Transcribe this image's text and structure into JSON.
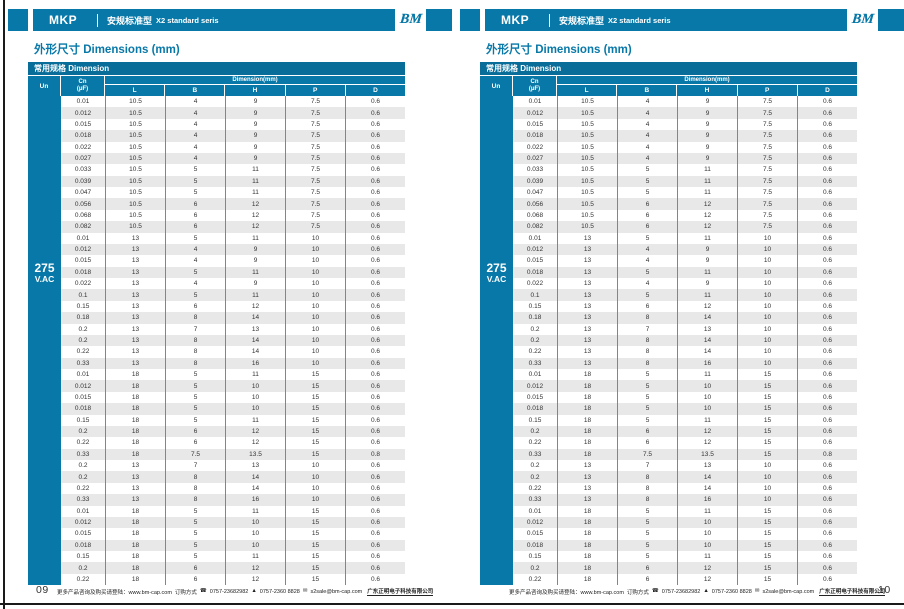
{
  "pages": [
    {
      "page_number": "09"
    },
    {
      "page_number": "10"
    }
  ],
  "header": {
    "series": "MKP",
    "subtitle_cn": "安规标准型",
    "subtitle_en": "X2 standard seris",
    "logo": "BM"
  },
  "section_title": "外形尺寸 Dimensions (mm)",
  "table": {
    "caption": "常用规格 Dimension",
    "col_un": "Un",
    "col_cn": "Cn",
    "col_cn_unit": "(μF)",
    "dim_group": "Dimension(mm)",
    "dim_cols": [
      "L",
      "B",
      "H",
      "P",
      "D"
    ],
    "un_value": "275",
    "un_unit": "V.AC",
    "rows": [
      [
        "0.01",
        "10.5",
        "4",
        "9",
        "7.5",
        "0.6"
      ],
      [
        "0.012",
        "10.5",
        "4",
        "9",
        "7.5",
        "0.6"
      ],
      [
        "0.015",
        "10.5",
        "4",
        "9",
        "7.5",
        "0.6"
      ],
      [
        "0.018",
        "10.5",
        "4",
        "9",
        "7.5",
        "0.6"
      ],
      [
        "0.022",
        "10.5",
        "4",
        "9",
        "7.5",
        "0.6"
      ],
      [
        "0.027",
        "10.5",
        "4",
        "9",
        "7.5",
        "0.6"
      ],
      [
        "0.033",
        "10.5",
        "5",
        "11",
        "7.5",
        "0.6"
      ],
      [
        "0.039",
        "10.5",
        "5",
        "11",
        "7.5",
        "0.6"
      ],
      [
        "0.047",
        "10.5",
        "5",
        "11",
        "7.5",
        "0.6"
      ],
      [
        "0.056",
        "10.5",
        "6",
        "12",
        "7.5",
        "0.6"
      ],
      [
        "0.068",
        "10.5",
        "6",
        "12",
        "7.5",
        "0.6"
      ],
      [
        "0.082",
        "10.5",
        "6",
        "12",
        "7.5",
        "0.6"
      ],
      [
        "0.01",
        "13",
        "5",
        "11",
        "10",
        "0.6"
      ],
      [
        "0.012",
        "13",
        "4",
        "9",
        "10",
        "0.6"
      ],
      [
        "0.015",
        "13",
        "4",
        "9",
        "10",
        "0.6"
      ],
      [
        "0.018",
        "13",
        "5",
        "11",
        "10",
        "0.6"
      ],
      [
        "0.022",
        "13",
        "4",
        "9",
        "10",
        "0.6"
      ],
      [
        "0.1",
        "13",
        "5",
        "11",
        "10",
        "0.6"
      ],
      [
        "0.15",
        "13",
        "6",
        "12",
        "10",
        "0.6"
      ],
      [
        "0.18",
        "13",
        "8",
        "14",
        "10",
        "0.6"
      ],
      [
        "0.2",
        "13",
        "7",
        "13",
        "10",
        "0.6"
      ],
      [
        "0.2",
        "13",
        "8",
        "14",
        "10",
        "0.6"
      ],
      [
        "0.22",
        "13",
        "8",
        "14",
        "10",
        "0.6"
      ],
      [
        "0.33",
        "13",
        "8",
        "16",
        "10",
        "0.6"
      ],
      [
        "0.01",
        "18",
        "5",
        "11",
        "15",
        "0.6"
      ],
      [
        "0.012",
        "18",
        "5",
        "10",
        "15",
        "0.6"
      ],
      [
        "0.015",
        "18",
        "5",
        "10",
        "15",
        "0.6"
      ],
      [
        "0.018",
        "18",
        "5",
        "10",
        "15",
        "0.6"
      ],
      [
        "0.15",
        "18",
        "5",
        "11",
        "15",
        "0.6"
      ],
      [
        "0.2",
        "18",
        "6",
        "12",
        "15",
        "0.6"
      ],
      [
        "0.22",
        "18",
        "6",
        "12",
        "15",
        "0.6"
      ],
      [
        "0.33",
        "18",
        "7.5",
        "13.5",
        "15",
        "0.8"
      ],
      [
        "0.2",
        "13",
        "7",
        "13",
        "10",
        "0.6"
      ],
      [
        "0.2",
        "13",
        "8",
        "14",
        "10",
        "0.6"
      ],
      [
        "0.22",
        "13",
        "8",
        "14",
        "10",
        "0.6"
      ],
      [
        "0.33",
        "13",
        "8",
        "16",
        "10",
        "0.6"
      ],
      [
        "0.01",
        "18",
        "5",
        "11",
        "15",
        "0.6"
      ],
      [
        "0.012",
        "18",
        "5",
        "10",
        "15",
        "0.6"
      ],
      [
        "0.015",
        "18",
        "5",
        "10",
        "15",
        "0.6"
      ],
      [
        "0.018",
        "18",
        "5",
        "10",
        "15",
        "0.6"
      ],
      [
        "0.15",
        "18",
        "5",
        "11",
        "15",
        "0.6"
      ],
      [
        "0.2",
        "18",
        "6",
        "12",
        "15",
        "0.6"
      ],
      [
        "0.22",
        "18",
        "6",
        "12",
        "15",
        "0.6"
      ]
    ]
  },
  "footer": {
    "info": "更多产品咨询及购买请登陆：www.bm-cap.com",
    "order_label": "订购方式",
    "icons": {
      "phone": "☎",
      "fax": "▲",
      "mail": "✉"
    },
    "phone1": "0757-23682982",
    "phone2": "0757-2360 8828",
    "email": "s2sale@bm-cap.com",
    "company": "广东正明电子科技有限公司"
  },
  "colors": {
    "brand_blue": "#0878a8",
    "caption_blue": "#086d99",
    "separator_cyan": "#2aa4d4",
    "row_alt_gray": "#e8e8e8"
  }
}
